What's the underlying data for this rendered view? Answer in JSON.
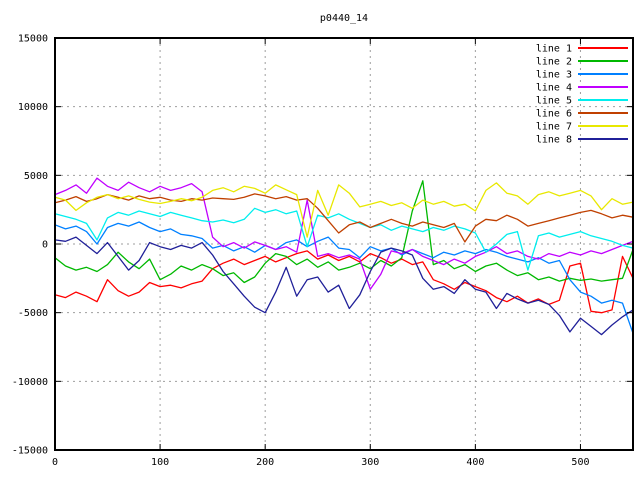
{
  "window": {
    "title": "p0440_14"
  },
  "colors": {
    "background": "#ffffff",
    "plot_border": "#000000",
    "grid": "#9e9e9e",
    "text": "#000000"
  },
  "chart_data": {
    "type": "line",
    "title": "p0440_14",
    "xlabel": "",
    "ylabel": "",
    "xlim": [
      0,
      550
    ],
    "ylim": [
      -15000,
      15000
    ],
    "x_ticks": [
      0,
      100,
      200,
      300,
      400,
      500
    ],
    "y_ticks": [
      -15000,
      -10000,
      -5000,
      0,
      5000,
      10000,
      15000
    ],
    "grid": true,
    "legend_position": "top-right",
    "x_step": 10,
    "series": [
      {
        "name": "line 1",
        "color": "#ff0000",
        "values": [
          -3700,
          -3900,
          -3500,
          -3800,
          -4200,
          -2600,
          -3400,
          -3800,
          -3500,
          -2800,
          -3100,
          -3000,
          -3200,
          -2900,
          -2700,
          -1800,
          -1400,
          -1100,
          -1500,
          -1200,
          -900,
          -1300,
          -1000,
          -700,
          -500,
          -1100,
          -800,
          -1200,
          -900,
          -1300,
          -700,
          -1000,
          -1400,
          -1100,
          -1500,
          -1300,
          -2600,
          -2900,
          -3300,
          -2800,
          -3100,
          -3400,
          -3900,
          -4200,
          -3800,
          -4300,
          -4000,
          -4400,
          -4100,
          -1600,
          -1400,
          -4900,
          -5000,
          -4800,
          -900,
          -2500
        ]
      },
      {
        "name": "line 2",
        "color": "#00b800",
        "values": [
          -1000,
          -1600,
          -1900,
          -1700,
          -2000,
          -1500,
          -600,
          -1300,
          -1800,
          -1100,
          -2600,
          -2200,
          -1600,
          -1900,
          -1500,
          -1800,
          -2300,
          -2100,
          -2800,
          -2400,
          -1400,
          -700,
          -900,
          -1500,
          -1100,
          -1700,
          -1300,
          -1900,
          -1700,
          -1400,
          -1800,
          -1200,
          -1600,
          -1000,
          2400,
          4600,
          -1500,
          -1200,
          -1800,
          -1500,
          -2000,
          -1600,
          -1400,
          -1900,
          -2300,
          -2100,
          -2600,
          -2400,
          -2700,
          -2500,
          -2650,
          -2550,
          -2700,
          -2600,
          -2500,
          -400
        ]
      },
      {
        "name": "line 3",
        "color": "#0080ff",
        "values": [
          1400,
          1100,
          1300,
          900,
          0,
          1200,
          1500,
          1300,
          1600,
          1200,
          900,
          1100,
          700,
          600,
          400,
          -300,
          -100,
          -500,
          -200,
          -600,
          -100,
          -400,
          100,
          300,
          -200,
          200,
          500,
          -300,
          -400,
          -1000,
          -200,
          -500,
          -300,
          -800,
          -400,
          -700,
          -1000,
          -600,
          -800,
          -500,
          -700,
          -400,
          -600,
          -900,
          -1100,
          -1300,
          -1000,
          -1400,
          -1200,
          -2600,
          -3500,
          -3800,
          -4300,
          -4100,
          -4300,
          -6500
        ]
      },
      {
        "name": "line 4",
        "color": "#c000ff",
        "values": [
          3600,
          3900,
          4300,
          3700,
          4800,
          4200,
          3900,
          4500,
          4100,
          3800,
          4200,
          3900,
          4100,
          4400,
          3800,
          500,
          -200,
          100,
          -300,
          150,
          -100,
          -400,
          -200,
          -600,
          3200,
          -900,
          -700,
          -1000,
          -800,
          -1100,
          -3300,
          -2200,
          -500,
          -700,
          -400,
          -900,
          -1200,
          -1500,
          -1100,
          -1400,
          -900,
          -600,
          -200,
          -700,
          -500,
          -900,
          -1100,
          -700,
          -900,
          -600,
          -800,
          -500,
          -700,
          -400,
          -100,
          200
        ]
      },
      {
        "name": "line 5",
        "color": "#00eeee",
        "values": [
          2200,
          2000,
          1800,
          1500,
          300,
          1900,
          2300,
          2100,
          2400,
          2200,
          2000,
          2300,
          2100,
          1900,
          1700,
          1600,
          1750,
          1550,
          1800,
          2600,
          2300,
          2500,
          2200,
          2400,
          -200,
          2100,
          1900,
          2200,
          1800,
          1500,
          1200,
          1400,
          1000,
          1300,
          1100,
          900,
          1200,
          1000,
          1300,
          1100,
          800,
          -600,
          0,
          700,
          900,
          -1900,
          600,
          800,
          500,
          700,
          900,
          600,
          400,
          200,
          -100,
          -300
        ]
      },
      {
        "name": "line 6",
        "color": "#c04000",
        "values": [
          3000,
          3200,
          3450,
          3100,
          3300,
          3600,
          3400,
          3200,
          3500,
          3300,
          3400,
          3200,
          3100,
          3300,
          3200,
          3350,
          3300,
          3250,
          3400,
          3650,
          3500,
          3300,
          3450,
          3200,
          3300,
          2600,
          1700,
          800,
          1400,
          1600,
          1200,
          1500,
          1800,
          1500,
          1300,
          1600,
          1400,
          1200,
          1500,
          150,
          1300,
          1800,
          1700,
          2100,
          1800,
          1300,
          1500,
          1700,
          1900,
          2100,
          2300,
          2450,
          2200,
          1900,
          2100,
          1950
        ]
      },
      {
        "name": "line 7",
        "color": "#e8e800",
        "values": [
          3400,
          3200,
          2450,
          3000,
          3400,
          3600,
          3300,
          3500,
          3250,
          3050,
          2950,
          3100,
          3300,
          3150,
          3400,
          3900,
          4100,
          3800,
          4200,
          4050,
          3700,
          4300,
          3950,
          3600,
          500,
          3900,
          2100,
          4300,
          3700,
          2700,
          2900,
          3100,
          2800,
          3000,
          2600,
          3200,
          2900,
          3100,
          2750,
          2900,
          2400,
          3900,
          4450,
          3700,
          3500,
          2900,
          3600,
          3800,
          3500,
          3700,
          3900,
          3500,
          2500,
          3300,
          2900,
          3050
        ]
      },
      {
        "name": "line 8",
        "color": "#202099",
        "values": [
          300,
          200,
          500,
          -100,
          -700,
          100,
          -900,
          -1900,
          -1200,
          100,
          -200,
          -400,
          -100,
          -300,
          100,
          -800,
          -2000,
          -2900,
          -3800,
          -4600,
          -5000,
          -3500,
          -1700,
          -3800,
          -2600,
          -2400,
          -3500,
          -3000,
          -4700,
          -3700,
          -2000,
          -600,
          -300,
          -500,
          -800,
          -2500,
          -3300,
          -3100,
          -3600,
          -2600,
          -3300,
          -3500,
          -4700,
          -3600,
          -4000,
          -4300,
          -4100,
          -4400,
          -5200,
          -6400,
          -5400,
          -6000,
          -6600,
          -5900,
          -5300,
          -4800
        ]
      }
    ]
  }
}
